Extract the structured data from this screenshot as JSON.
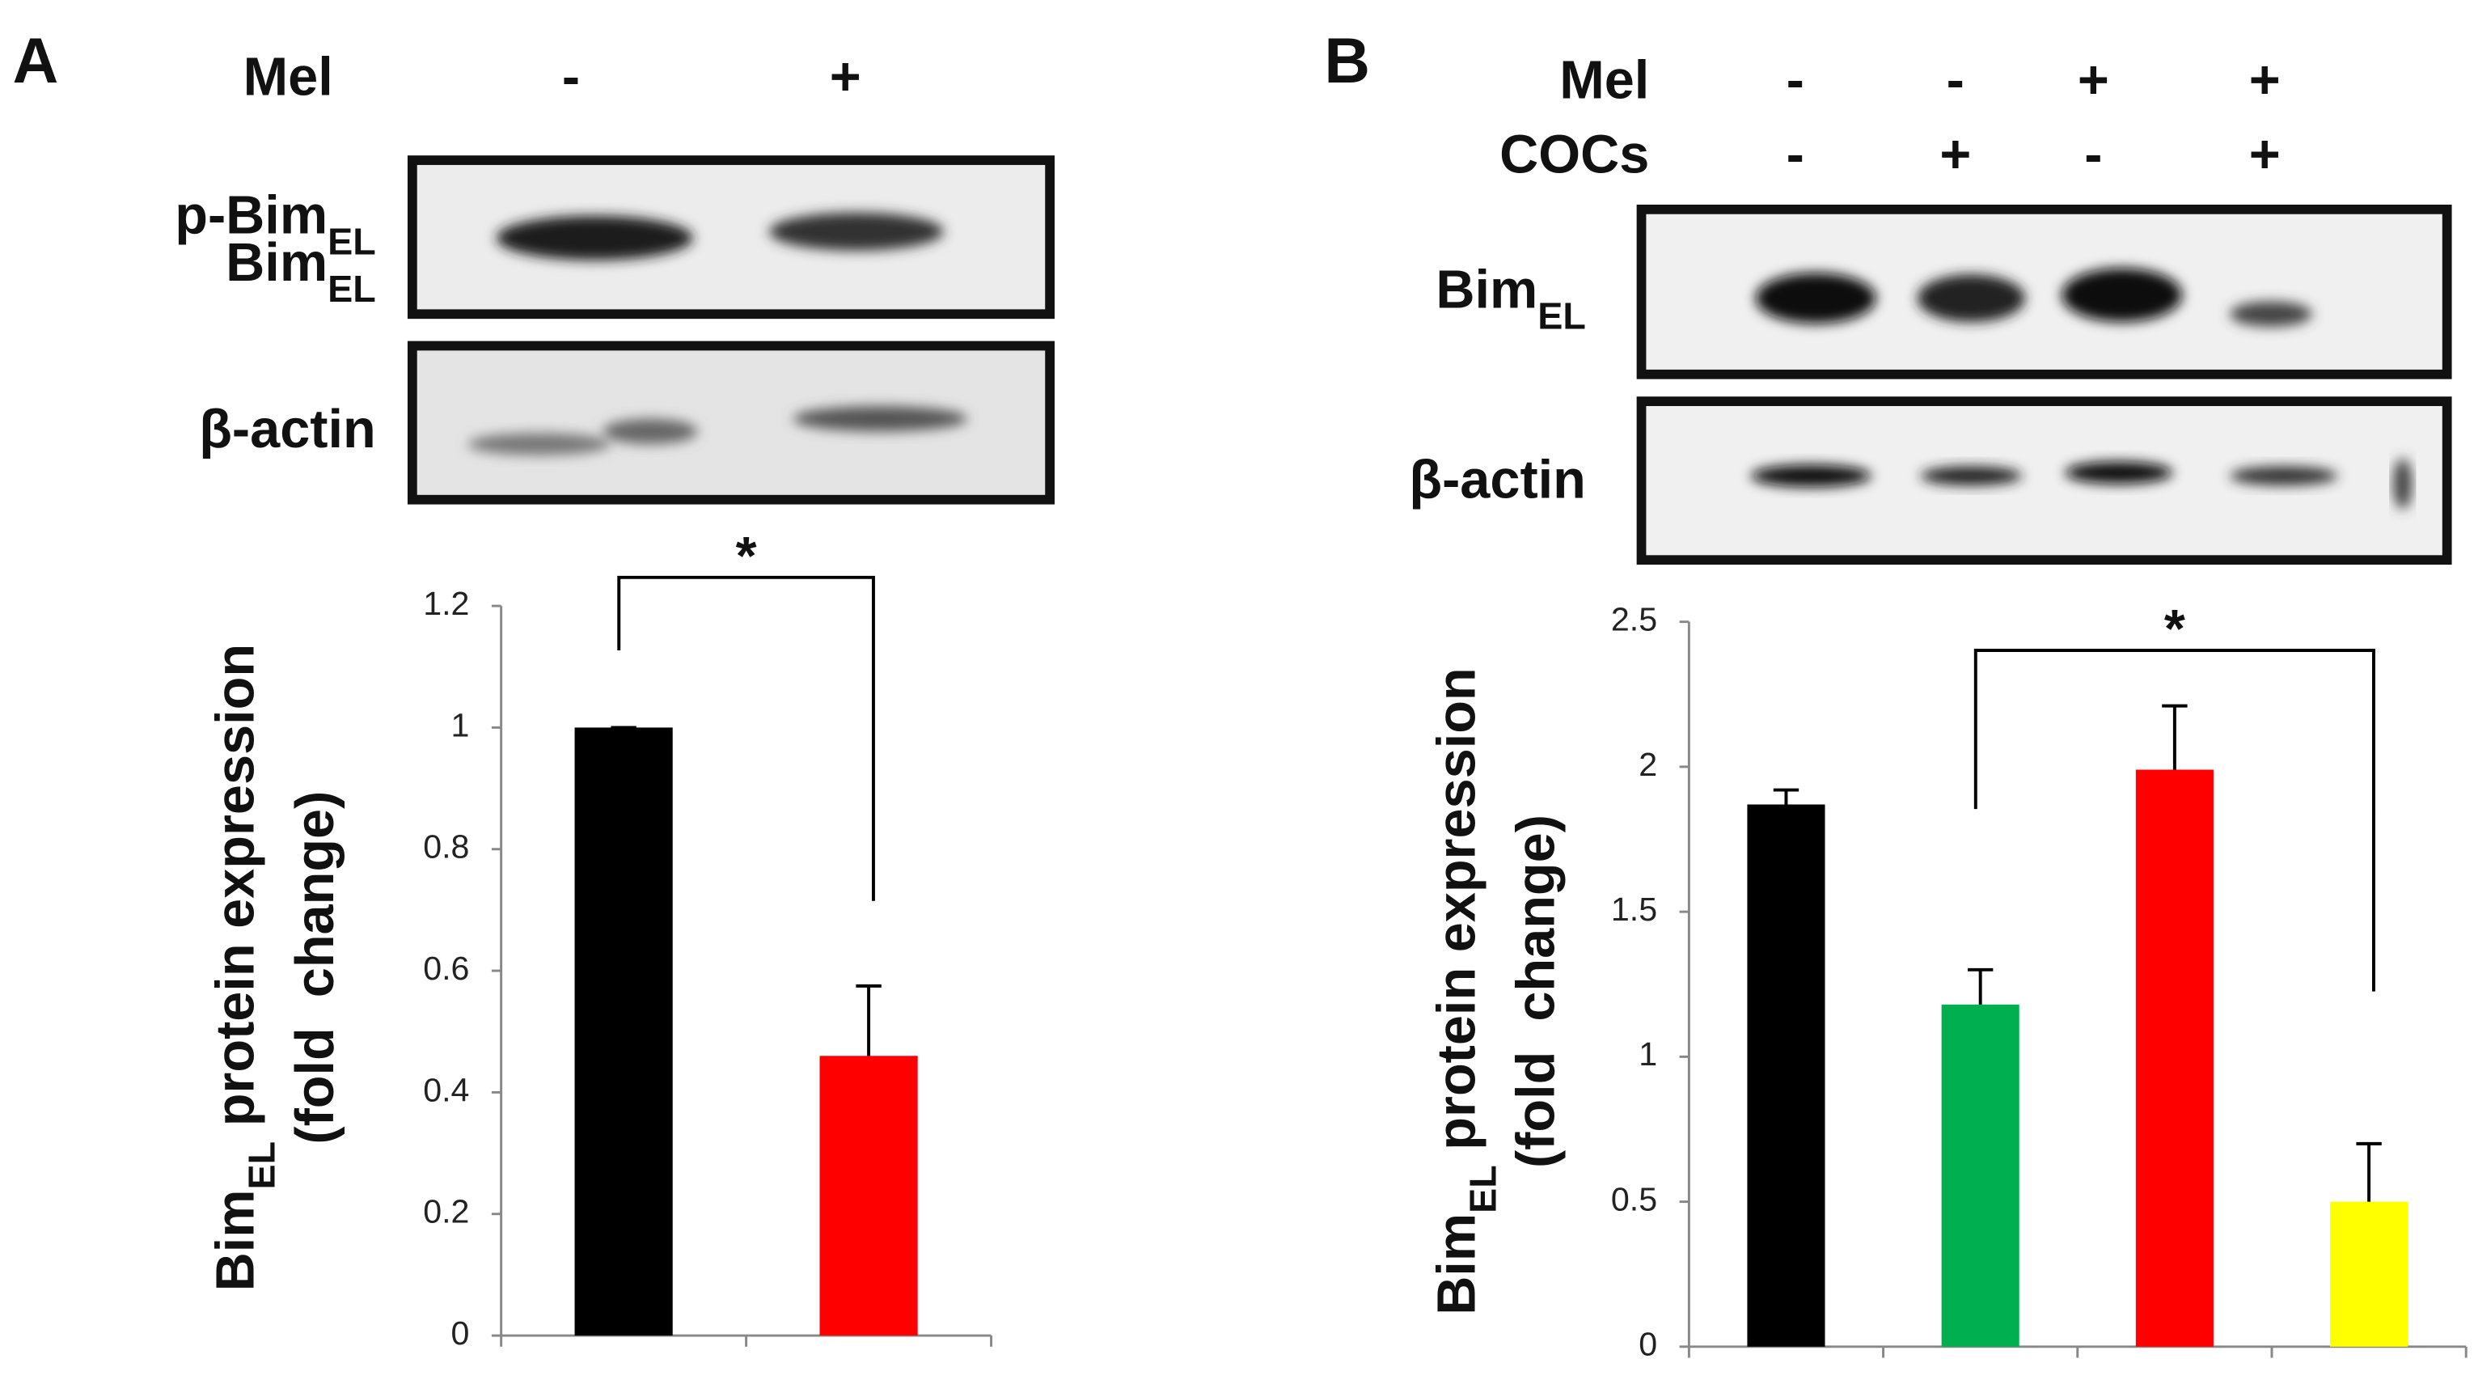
{
  "chart_data": [
    {
      "type": "bar",
      "panel": "A",
      "conditions": [
        {
          "name": "Mel",
          "values": [
            "-",
            "+"
          ]
        }
      ],
      "blot_labels": [
        [
          "p-Bim",
          "EL"
        ],
        [
          "Bim",
          "EL"
        ],
        [
          "β-actin"
        ]
      ],
      "categories": [
        null,
        null
      ],
      "values": [
        1,
        0.46
      ],
      "errors": [
        0,
        0.115
      ],
      "colors": [
        "#000000",
        "#ff0000"
      ],
      "ylim": [
        0,
        1.2
      ],
      "yticks": [
        0,
        0.2,
        0.4,
        0.6,
        0.8,
        1,
        1.2
      ],
      "y_label": [
        "Bim",
        "EL",
        " protein expression"
      ],
      "y_label_2": "(fold  change)",
      "annotation": "*"
    },
    {
      "type": "bar",
      "panel": "B",
      "conditions": [
        {
          "name": "Mel",
          "values": [
            "-",
            "-",
            "+",
            "+"
          ]
        },
        {
          "name": "COCs",
          "values": [
            "-",
            "+",
            "-",
            "+"
          ]
        }
      ],
      "blot_labels": [
        [
          "Bim",
          "EL"
        ],
        [
          "β-actin"
        ]
      ],
      "categories": [
        null,
        null,
        null,
        null
      ],
      "values": [
        1.87,
        1.18,
        1.99,
        0.5
      ],
      "errors": [
        0.05,
        0.12,
        0.22,
        0.2
      ],
      "colors": [
        "#000000",
        "#00b050",
        "#ff0000",
        "#ffff00"
      ],
      "ylim": [
        0,
        2.5
      ],
      "yticks": [
        0,
        0.5,
        1,
        1.5,
        2,
        2.5
      ],
      "y_label": [
        "Bim",
        "EL",
        " protein expression"
      ],
      "y_label_2": "(fold  change)",
      "annotation": "*"
    }
  ]
}
